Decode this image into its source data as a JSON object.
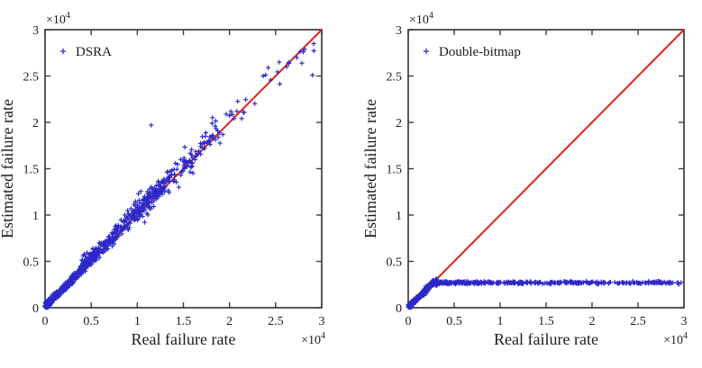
{
  "figure": {
    "background": "#ffffff",
    "axis_color": "#3d3d3d",
    "text_color": "#1c1c1c",
    "marker_color": "#2c28c8",
    "line_color": "#e2231a",
    "unit_multiplier": 10000,
    "exponent_label": {
      "base": "×10",
      "exp": "4"
    }
  },
  "chart_data": [
    {
      "type": "scatter",
      "panel": "left",
      "legend": [
        {
          "label": "DSRA",
          "marker": "+",
          "color": "#2c28c8"
        }
      ],
      "xlabel": "Real failure rate",
      "ylabel": "Estimated failure rate",
      "xlim": [
        0,
        3
      ],
      "ylim": [
        0,
        3
      ],
      "x_ticks": [
        0,
        0.5,
        1,
        1.5,
        2,
        2.5,
        3
      ],
      "x_tick_labels": [
        "0",
        "0.5",
        "1",
        "1.5",
        "2",
        "2.5",
        "3"
      ],
      "y_ticks": [
        0,
        0.5,
        1,
        1.5,
        2,
        2.5,
        3
      ],
      "y_tick_labels": [
        "0",
        "0.5",
        "1",
        "1.5",
        "2",
        "2.5",
        "3"
      ],
      "grid": false,
      "legend_position": "top-left-inside",
      "reference_line": {
        "type": "identity",
        "from": [
          0,
          0
        ],
        "to": [
          3,
          3
        ]
      },
      "series": [
        {
          "name": "DSRA",
          "marker": "+",
          "relationship": "estimate tracks real rate (y ≈ x), spread grows with x, slight over-estimation bias in mid range",
          "synthesis": {
            "seed": 7,
            "segments": [
              {
                "n": 560,
                "x_min": 0.0,
                "x_max": 0.55,
                "x_pow": 1.25,
                "noise": 0.02,
                "bias": 0.01,
                "mode": "diag"
              },
              {
                "n": 340,
                "x_min": 0.4,
                "x_max": 1.35,
                "x_pow": 1.15,
                "noise": 0.045,
                "bias": 0.04,
                "mode": "diag"
              },
              {
                "n": 115,
                "x_min": 0.95,
                "x_max": 1.9,
                "x_pow": 1.0,
                "noise": 0.075,
                "bias": 0.03,
                "mode": "diag"
              },
              {
                "n": 36,
                "x_min": 1.5,
                "x_max": 2.45,
                "x_pow": 1.0,
                "noise": 0.09,
                "bias": 0.01,
                "mode": "diag"
              },
              {
                "n": 10,
                "x_min": 2.45,
                "x_max": 2.95,
                "x_pow": 1.0,
                "noise": 0.09,
                "bias": -0.05,
                "mode": "diag"
              }
            ],
            "outliers": [
              [
                1.15,
                1.97
              ],
              [
                2.9,
                2.51
              ],
              [
                2.73,
                2.7
              ],
              [
                2.8,
                2.76
              ],
              [
                2.62,
                2.6
              ],
              [
                1.45,
                1.3
              ]
            ]
          }
        }
      ]
    },
    {
      "type": "scatter",
      "panel": "right",
      "legend": [
        {
          "label": "Double-bitmap",
          "marker": "+",
          "color": "#2c28c8"
        }
      ],
      "xlabel": "Real failure rate",
      "ylabel": "Estimated failure rate",
      "xlim": [
        0,
        3
      ],
      "ylim": [
        0,
        3
      ],
      "x_ticks": [
        0,
        0.5,
        1,
        1.5,
        2,
        2.5,
        3
      ],
      "x_tick_labels": [
        "0",
        "0.5",
        "1",
        "1.5",
        "2",
        "2.5",
        "3"
      ],
      "y_ticks": [
        0,
        0.5,
        1,
        1.5,
        2,
        2.5,
        3
      ],
      "y_tick_labels": [
        "0",
        "0.5",
        "1",
        "1.5",
        "2",
        "2.5",
        "3"
      ],
      "grid": false,
      "legend_position": "top-left-inside",
      "reference_line": {
        "type": "identity",
        "from": [
          0,
          0
        ],
        "to": [
          3,
          3
        ]
      },
      "plateau_value": 0.27,
      "series": [
        {
          "name": "Double-bitmap",
          "marker": "+",
          "relationship": "estimate tracks real rate only up to ≈0.27×10⁴, then saturates flat at ≈0.27×10⁴ for all larger real rates",
          "synthesis": {
            "seed": 11,
            "plateau": 0.27,
            "segments": [
              {
                "n": 270,
                "x_min": 0.0,
                "x_max": 0.29,
                "x_pow": 1.15,
                "noise": 0.013,
                "bias": 0,
                "mode": "rise"
              },
              {
                "n": 80,
                "x_min": 0.15,
                "x_max": 0.33,
                "x_pow": 1.0,
                "noise": 0.018,
                "bias": 0,
                "mode": "knee"
              },
              {
                "n": 430,
                "x_min": 0.27,
                "x_max": 2.97,
                "x_pow": 1.75,
                "noise": 0.007,
                "bias": 0,
                "mode": "flat"
              }
            ],
            "outliers": [
              [
                2.88,
                0.27
              ],
              [
                2.93,
                0.268
              ],
              [
                2.97,
                0.272
              ],
              [
                2.55,
                0.27
              ],
              [
                2.58,
                0.266
              ],
              [
                2.3,
                0.27
              ],
              [
                2.33,
                0.272
              ]
            ]
          }
        }
      ]
    }
  ]
}
